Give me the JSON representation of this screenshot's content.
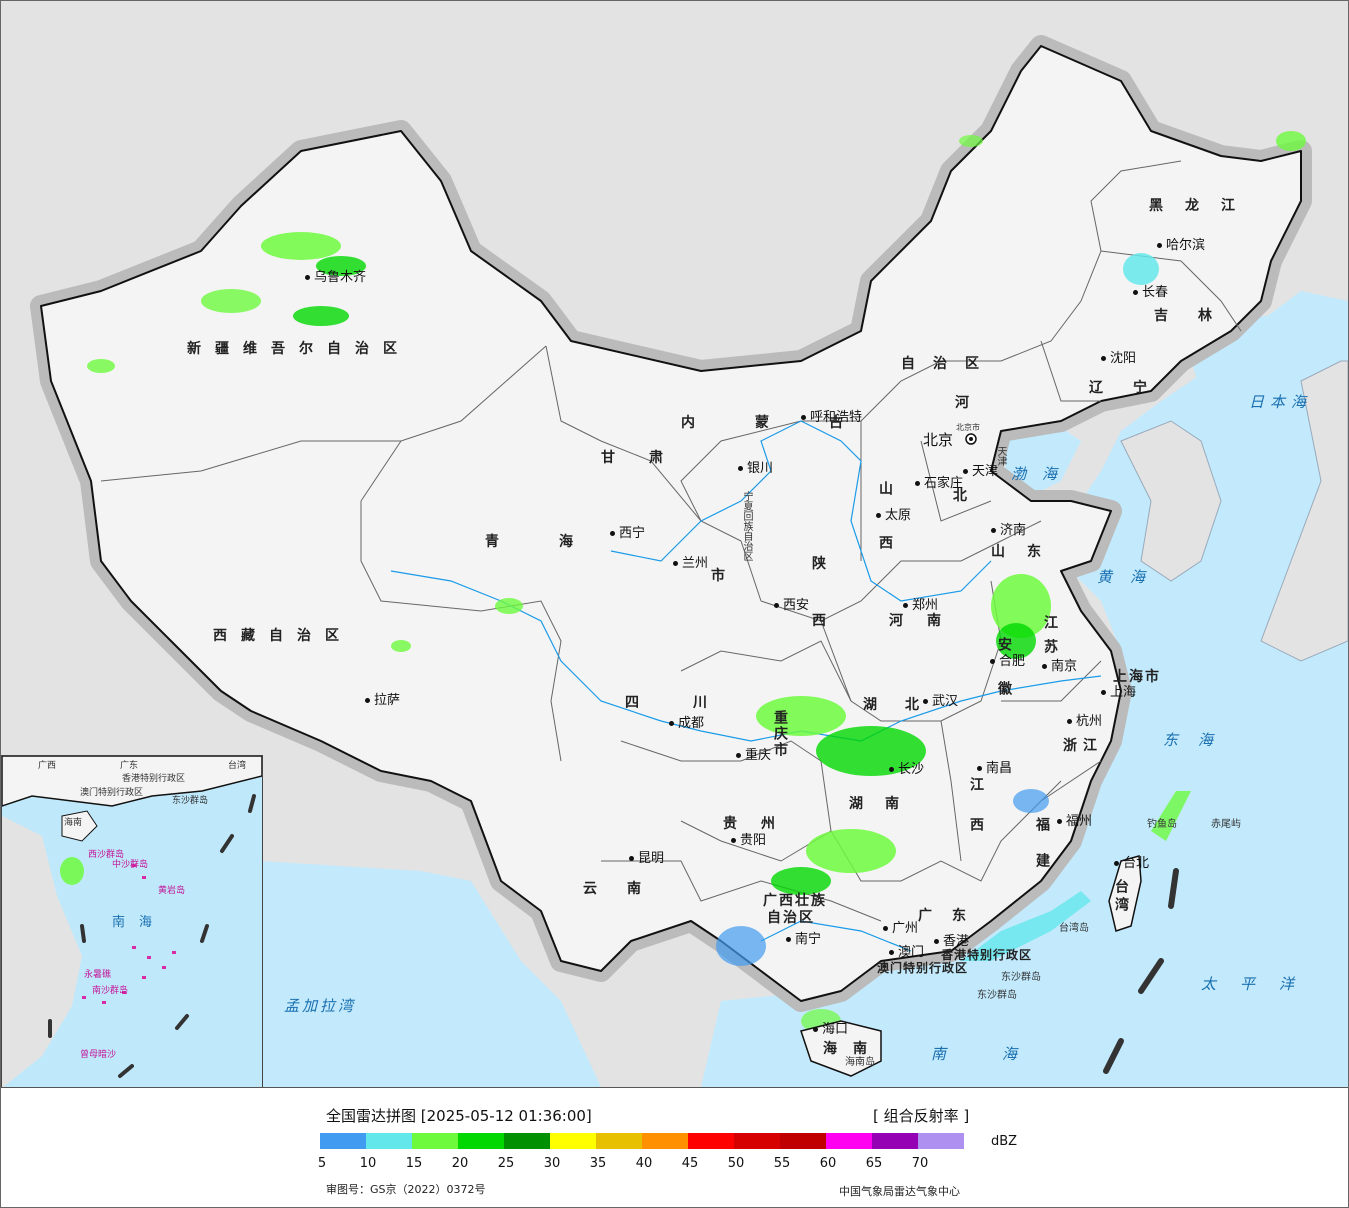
{
  "map": {
    "provinces": [
      {
        "key": "xinjiang",
        "label": "新疆维吾尔自治区"
      },
      {
        "key": "xizang",
        "label": "西藏自治区"
      },
      {
        "key": "qinghai",
        "label": "青海"
      },
      {
        "key": "gansu",
        "label": "甘肃"
      },
      {
        "key": "neimenggu_a",
        "label": "内蒙古"
      },
      {
        "key": "neimenggu_b",
        "label": "自治区"
      },
      {
        "key": "heilongjiang",
        "label": "黑龙江"
      },
      {
        "key": "jilin",
        "label": "吉林"
      },
      {
        "key": "liaoning",
        "label": "辽宁"
      },
      {
        "key": "hebei_a",
        "label": "河"
      },
      {
        "key": "hebei_b",
        "label": "北"
      },
      {
        "key": "shanxi",
        "label": "山西"
      },
      {
        "key": "shaanxi_a",
        "label": "陕"
      },
      {
        "key": "shaanxi_b",
        "label": "西"
      },
      {
        "key": "ningxia",
        "label": "宁夏回族自治区"
      },
      {
        "key": "shandong",
        "label": "山东"
      },
      {
        "key": "henan",
        "label": "河南"
      },
      {
        "key": "jiangsu",
        "label": "江苏"
      },
      {
        "key": "anhui",
        "label": "安徽"
      },
      {
        "key": "sichuan",
        "label": "四川"
      },
      {
        "key": "chongqing",
        "label": "重庆市"
      },
      {
        "key": "hubei",
        "label": "湖北"
      },
      {
        "key": "hunan",
        "label": "湖南"
      },
      {
        "key": "jiangxi",
        "label": "江西"
      },
      {
        "key": "zhejiang",
        "label": "浙江"
      },
      {
        "key": "fujian",
        "label": "福建"
      },
      {
        "key": "guizhou",
        "label": "贵州"
      },
      {
        "key": "yunnan",
        "label": "云南"
      },
      {
        "key": "guangxi_a",
        "label": "广西壮族"
      },
      {
        "key": "guangxi_b",
        "label": "自治区"
      },
      {
        "key": "guangdong",
        "label": "广东"
      },
      {
        "key": "hainan",
        "label": "海南"
      },
      {
        "key": "taiwan",
        "label": "台湾"
      },
      {
        "key": "shanghai",
        "label": "上海市"
      },
      {
        "key": "tianjin",
        "label": "天津"
      },
      {
        "key": "beijing_shi",
        "label": "北京市"
      },
      {
        "key": "gansu_shi",
        "label": "市"
      },
      {
        "key": "hongkong",
        "label": "香港特别行政区"
      },
      {
        "key": "macau",
        "label": "澳门特别行政区"
      }
    ],
    "cities": [
      {
        "key": "urumqi",
        "label": "乌鲁木齐"
      },
      {
        "key": "lhasa",
        "label": "拉萨"
      },
      {
        "key": "xining",
        "label": "西宁"
      },
      {
        "key": "lanzhou",
        "label": "兰州"
      },
      {
        "key": "yinchuan",
        "label": "银川"
      },
      {
        "key": "hohhot",
        "label": "呼和浩特"
      },
      {
        "key": "harbin",
        "label": "哈尔滨"
      },
      {
        "key": "changchun",
        "label": "长春"
      },
      {
        "key": "shenyang",
        "label": "沈阳"
      },
      {
        "key": "beijing",
        "label": "北京"
      },
      {
        "key": "tianjin",
        "label": "天津"
      },
      {
        "key": "shijiazhuang",
        "label": "石家庄"
      },
      {
        "key": "taiyuan",
        "label": "太原"
      },
      {
        "key": "jinan",
        "label": "济南"
      },
      {
        "key": "zhengzhou",
        "label": "郑州"
      },
      {
        "key": "xian",
        "label": "西安"
      },
      {
        "key": "nanjing",
        "label": "南京"
      },
      {
        "key": "hefei",
        "label": "合肥"
      },
      {
        "key": "shanghai",
        "label": "上海"
      },
      {
        "key": "hangzhou",
        "label": "杭州"
      },
      {
        "key": "wuhan",
        "label": "武汉"
      },
      {
        "key": "chengdu",
        "label": "成都"
      },
      {
        "key": "chongqing",
        "label": "重庆"
      },
      {
        "key": "changsha",
        "label": "长沙"
      },
      {
        "key": "nanchang",
        "label": "南昌"
      },
      {
        "key": "fuzhou",
        "label": "福州"
      },
      {
        "key": "taipei",
        "label": "台北"
      },
      {
        "key": "guiyang",
        "label": "贵阳"
      },
      {
        "key": "kunming",
        "label": "昆明"
      },
      {
        "key": "nanning",
        "label": "南宁"
      },
      {
        "key": "guangzhou",
        "label": "广州"
      },
      {
        "key": "hongkong",
        "label": "香港"
      },
      {
        "key": "macau",
        "label": "澳门"
      },
      {
        "key": "haikou",
        "label": "海口"
      }
    ],
    "seas": [
      {
        "key": "bohai",
        "label": "渤海"
      },
      {
        "key": "huanghai",
        "label": "黄海"
      },
      {
        "key": "donghai",
        "label": "东海"
      },
      {
        "key": "nanhai",
        "label": "南海"
      },
      {
        "key": "taipingyang",
        "label": "太平洋"
      },
      {
        "key": "ribenhai",
        "label": "日本海"
      },
      {
        "key": "mengjialawan",
        "label": "孟加拉湾"
      }
    ],
    "islands": [
      {
        "key": "diaoyudao",
        "label": "钓鱼岛"
      },
      {
        "key": "chiweiyu",
        "label": "赤尾屿"
      },
      {
        "key": "dongsha_a",
        "label": "东沙群岛"
      },
      {
        "key": "dongsha_b",
        "label": "东沙群岛"
      },
      {
        "key": "taiwandao",
        "label": "台湾岛"
      },
      {
        "key": "hainandao",
        "label": "海南岛"
      }
    ],
    "inset": {
      "labels": [
        {
          "key": "guangxi",
          "label": "广西"
        },
        {
          "key": "guangdong",
          "label": "广东"
        },
        {
          "key": "hongkong",
          "label": "香港特别行政区"
        },
        {
          "key": "macau",
          "label": "澳门特别行政区"
        },
        {
          "key": "taiwan",
          "label": "台湾"
        },
        {
          "key": "hainan",
          "label": "海南"
        },
        {
          "key": "xisha",
          "label": "西沙群岛"
        },
        {
          "key": "zhongsha",
          "label": "中沙群岛"
        },
        {
          "key": "huangyandao",
          "label": "黄岩岛"
        },
        {
          "key": "nanhai",
          "label": "南海"
        },
        {
          "key": "nansha",
          "label": "南沙群岛"
        },
        {
          "key": "zengmuansha",
          "label": "曾母暗沙"
        },
        {
          "key": "dongsha",
          "label": "东沙群岛"
        },
        {
          "key": "yongshujiao",
          "label": "永暑礁"
        }
      ]
    }
  },
  "legend": {
    "title": "全国雷达拼图 [2025-05-12 01:36:00]",
    "product": "[ 组合反射率 ]",
    "unit": "dBZ",
    "colors": [
      "#419bf0",
      "#64e7eb",
      "#6dfa3d",
      "#00d800",
      "#019001",
      "#ffff00",
      "#e7c000",
      "#ff9000",
      "#ff0000",
      "#d60000",
      "#c00000",
      "#ff00f0",
      "#9600b4",
      "#ad90f0"
    ],
    "ticks": [
      "5",
      "10",
      "15",
      "20",
      "25",
      "30",
      "35",
      "40",
      "45",
      "50",
      "55",
      "60",
      "65",
      "70"
    ],
    "approval": "审图号：GS京（2022）0372号",
    "source": "中国气象局雷达气象中心"
  }
}
